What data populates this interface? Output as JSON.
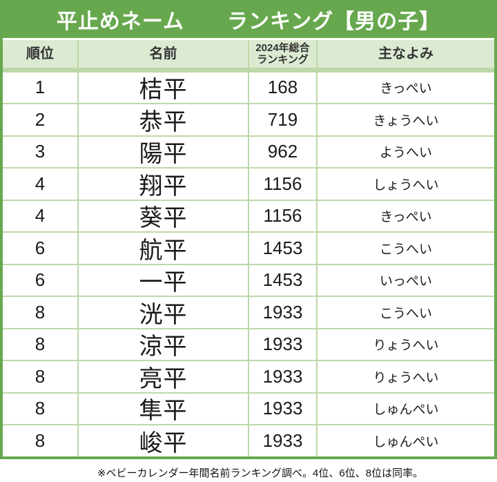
{
  "title": "平止めネーム　　ランキング【男の子】",
  "header": {
    "rank": "順位",
    "name": "名前",
    "overall_line1": "2024年総合",
    "overall_line2": "ランキング",
    "reading": "主なよみ"
  },
  "footer": "※ベビーカレンダー年間名前ランキング調べ。4位、6位、8位は同率。",
  "colors": {
    "green": "#67a84e",
    "header_bg": "#dcead2",
    "divider": "#bcd8a8",
    "title_text": "#ffffff",
    "cell_text": "#1a1a1a"
  },
  "chart_data": {
    "type": "table",
    "title": "平止めネーム　　ランキング【男の子】",
    "columns": [
      "順位",
      "名前",
      "2024年総合ランキング",
      "主なよみ"
    ],
    "rows": [
      {
        "rank": "1",
        "name": "桔平",
        "overall": "168",
        "reading": "きっぺい"
      },
      {
        "rank": "2",
        "name": "恭平",
        "overall": "719",
        "reading": "きょうへい"
      },
      {
        "rank": "3",
        "name": "陽平",
        "overall": "962",
        "reading": "ようへい"
      },
      {
        "rank": "4",
        "name": "翔平",
        "overall": "1156",
        "reading": "しょうへい"
      },
      {
        "rank": "4",
        "name": "葵平",
        "overall": "1156",
        "reading": "きっぺい"
      },
      {
        "rank": "6",
        "name": "航平",
        "overall": "1453",
        "reading": "こうへい"
      },
      {
        "rank": "6",
        "name": "一平",
        "overall": "1453",
        "reading": "いっぺい"
      },
      {
        "rank": "8",
        "name": "洸平",
        "overall": "1933",
        "reading": "こうへい"
      },
      {
        "rank": "8",
        "name": "涼平",
        "overall": "1933",
        "reading": "りょうへい"
      },
      {
        "rank": "8",
        "name": "亮平",
        "overall": "1933",
        "reading": "りょうへい"
      },
      {
        "rank": "8",
        "name": "隼平",
        "overall": "1933",
        "reading": "しゅんぺい"
      },
      {
        "rank": "8",
        "name": "峻平",
        "overall": "1933",
        "reading": "しゅんぺい"
      }
    ]
  }
}
